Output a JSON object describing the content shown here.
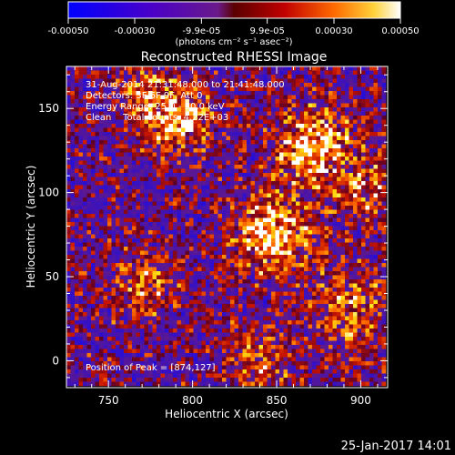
{
  "chart_data": {
    "type": "heatmap",
    "title": "Reconstructed RHESSI Image",
    "xlabel": "Heliocentric X (arcsec)",
    "ylabel": "Heliocentric Y (arcsec)",
    "xlim": [
      725,
      916
    ],
    "ylim": [
      -16,
      175
    ],
    "xticks": [
      750,
      800,
      850,
      900
    ],
    "yticks": [
      0,
      50,
      100,
      150
    ],
    "colorbar": {
      "range": [
        -0.0005,
        0.0005
      ],
      "tick_values": [
        -0.0005,
        -0.0003,
        -9.9e-05,
        9.9e-05,
        0.0003,
        0.0005
      ],
      "tick_labels": [
        "-0.00050",
        "-0.00030",
        "-9.9e-05",
        "9.9e-05",
        "0.00030",
        "0.00050"
      ],
      "unit_label": "(photons cm⁻² s⁻¹ asec⁻²)"
    },
    "annotations": [
      "31-Aug-2014 21:31:48.000 to 21:41:48.000",
      "Detectors: 3F 6F 9F, Att 0",
      "Energy Range: 25.0 - 50.0 keV",
      "Clean    Total counts: 4.22E+03"
    ],
    "peak_label": "Position of Peak = [874,127]",
    "peak": [
      874,
      127
    ],
    "sources": [
      {
        "x": 874,
        "y": 127,
        "amp": 0.0005,
        "sigma": 16
      },
      {
        "x": 790,
        "y": 145,
        "amp": 0.00045,
        "sigma": 15
      },
      {
        "x": 848,
        "y": 75,
        "amp": 0.00048,
        "sigma": 17
      },
      {
        "x": 895,
        "y": 30,
        "amp": 0.0003,
        "sigma": 18
      },
      {
        "x": 770,
        "y": 45,
        "amp": 0.0003,
        "sigma": 14
      },
      {
        "x": 840,
        "y": 0,
        "amp": 0.00028,
        "sigma": 14
      },
      {
        "x": 905,
        "y": 100,
        "amp": 0.0003,
        "sigma": 12
      },
      {
        "x": 770,
        "y": 160,
        "amp": 0.00025,
        "sigma": 10
      }
    ]
  },
  "footer": {
    "timestamp": "25-Jan-2017 14:01"
  }
}
